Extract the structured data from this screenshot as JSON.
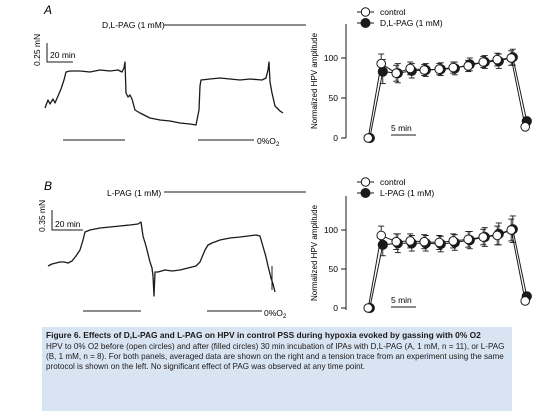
{
  "panels": [
    {
      "letter": "A",
      "drug_label": "D,L-PAG (1 mM)",
      "scale_y_label": "0.25 mN",
      "scale_x_label": "20 min",
      "hypoxia_label": "0%O",
      "hypoxia_sub": "2"
    },
    {
      "letter": "B",
      "drug_label": "L-PAG (1 mM)",
      "scale_y_label": "0.35 mN",
      "scale_x_label": "20 min",
      "hypoxia_label": "0%O",
      "hypoxia_sub": "2"
    }
  ],
  "chart_data": [
    {
      "type": "scatter",
      "panel": "A",
      "ylabel": "Normalized HPV amplitude",
      "ylim": [
        0,
        125
      ],
      "yticks": [
        0,
        50,
        100
      ],
      "time_scale_label": "5 min",
      "legend_position": "top-right",
      "series": [
        {
          "name": "control",
          "marker": "open-circle",
          "y": [
            0,
            93,
            81,
            87,
            85,
            86,
            88,
            90,
            95,
            98,
            100,
            14
          ],
          "err": [
            0,
            12,
            10,
            8,
            7,
            7,
            7,
            7,
            7,
            8,
            9,
            4
          ]
        },
        {
          "name": "D,L-PAG (1 mM)",
          "marker": "filled-circle",
          "y": [
            0,
            83,
            81,
            84,
            85,
            86,
            87,
            92,
            95,
            96,
            101,
            21
          ],
          "err": [
            0,
            15,
            12,
            9,
            8,
            8,
            8,
            8,
            8,
            9,
            10,
            5
          ]
        }
      ]
    },
    {
      "type": "scatter",
      "panel": "B",
      "ylabel": "Normalized HPV amplitude",
      "ylim": [
        0,
        125
      ],
      "yticks": [
        0,
        50,
        100
      ],
      "time_scale_label": "5 min",
      "legend_position": "top-right",
      "series": [
        {
          "name": "control",
          "marker": "open-circle",
          "y": [
            0,
            93,
            85,
            86,
            85,
            84,
            86,
            88,
            91,
            93,
            100,
            9
          ],
          "err": [
            0,
            12,
            10,
            9,
            9,
            9,
            9,
            10,
            10,
            12,
            14,
            4
          ]
        },
        {
          "name": "L-PAG (1 mM)",
          "marker": "filled-circle",
          "y": [
            0,
            81,
            83,
            83,
            83,
            82,
            84,
            87,
            91,
            95,
            101,
            15
          ],
          "err": [
            0,
            14,
            12,
            10,
            10,
            10,
            10,
            11,
            12,
            14,
            17,
            5
          ]
        }
      ]
    }
  ],
  "caption": {
    "title": "Figure 6. Effects of D,L-PAG and L-PAG on HPV in control PSS during hypoxia evoked by gassing with 0% O2",
    "body": "HPV to 0% O2 before (open circles) and after (filled circles) 30 min incubation of IPAs with D,L-PAG (A, 1 mM, n = 11), or L-PAG (B, 1 mM, n = 8). For both panels, averaged data are shown on the right and a tension trace from an experiment using the same protocol is shown on the left. No significant effect of PAG was observed at any time point."
  }
}
